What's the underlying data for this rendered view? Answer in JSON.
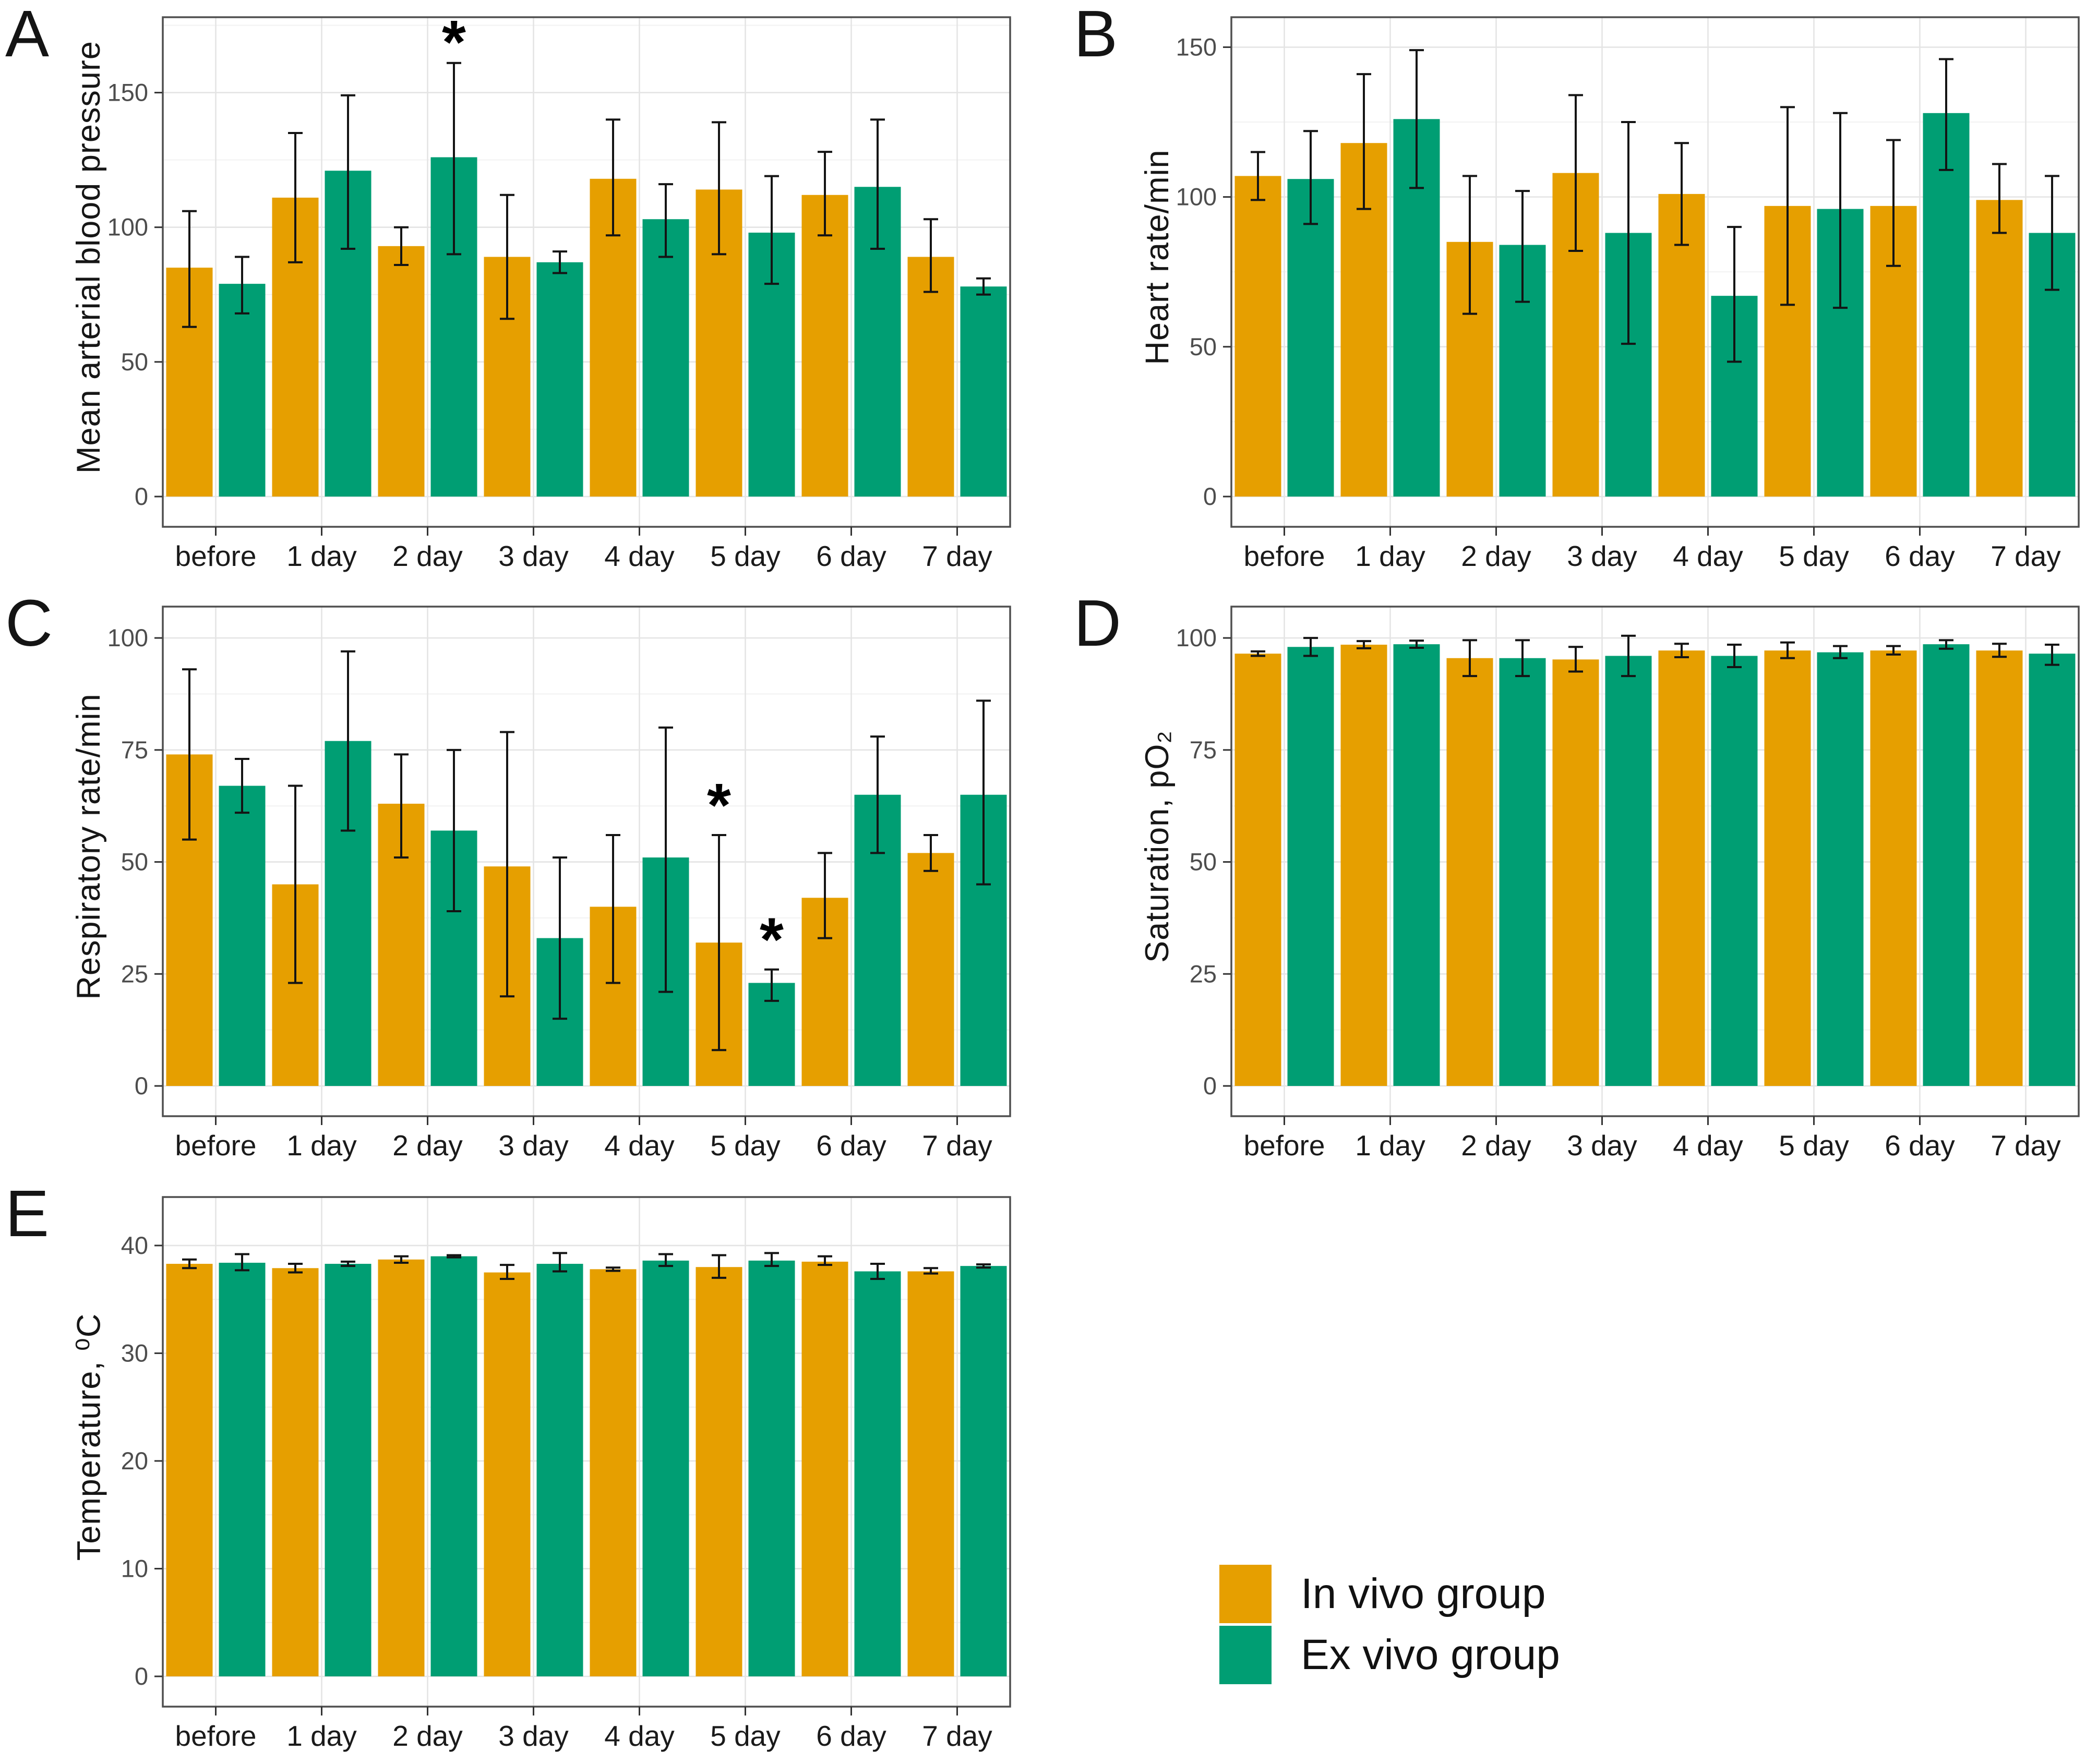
{
  "page": {
    "background": "#ffffff"
  },
  "legend": {
    "position": "bottom-right",
    "items": [
      {
        "label": "In vivo group",
        "color": "#E69F00"
      },
      {
        "label": "Ex vivo group",
        "color": "#009E73"
      }
    ]
  },
  "chart_data": [
    {
      "panel_letter": "A",
      "type": "bar",
      "title": "",
      "xlabel": "",
      "ylabel": "Mean arterial blood pressure",
      "ylim": [
        0,
        178
      ],
      "yticks": [
        0,
        50,
        100,
        150
      ],
      "grid": true,
      "categories": [
        "before",
        "1 day",
        "2 day",
        "3 day",
        "4 day",
        "5 day",
        "6 day",
        "7 day"
      ],
      "series": [
        {
          "name": "In vivo group",
          "color": "#E69F00",
          "values": [
            85,
            111,
            93,
            89,
            118,
            114,
            112,
            89
          ],
          "err_low": [
            63,
            87,
            86,
            66,
            97,
            90,
            97,
            76
          ],
          "err_high": [
            106,
            135,
            100,
            112,
            140,
            139,
            128,
            103
          ]
        },
        {
          "name": "Ex vivo group",
          "color": "#009E73",
          "values": [
            79,
            121,
            126,
            87,
            103,
            98,
            115,
            78
          ],
          "err_low": [
            68,
            92,
            90,
            83,
            89,
            79,
            92,
            75
          ],
          "err_high": [
            89,
            149,
            161,
            91,
            116,
            119,
            140,
            81
          ]
        }
      ],
      "annotations": [
        {
          "cat": 2,
          "series": 1,
          "value": 161,
          "symbol": "*"
        }
      ]
    },
    {
      "panel_letter": "B",
      "type": "bar",
      "title": "",
      "xlabel": "",
      "ylabel": "Heart rate/min",
      "ylim": [
        0,
        160
      ],
      "yticks": [
        0,
        50,
        100,
        150
      ],
      "grid": true,
      "categories": [
        "before",
        "1 day",
        "2 day",
        "3 day",
        "4 day",
        "5 day",
        "6 day",
        "7 day"
      ],
      "series": [
        {
          "name": "In vivo group",
          "color": "#E69F00",
          "values": [
            107,
            118,
            85,
            108,
            101,
            97,
            97,
            99
          ],
          "err_low": [
            99,
            96,
            61,
            82,
            84,
            64,
            77,
            88
          ],
          "err_high": [
            115,
            141,
            107,
            134,
            118,
            130,
            119,
            111
          ]
        },
        {
          "name": "Ex vivo group",
          "color": "#009E73",
          "values": [
            106,
            126,
            84,
            88,
            67,
            96,
            128,
            88
          ],
          "err_low": [
            91,
            103,
            65,
            51,
            45,
            63,
            109,
            69
          ],
          "err_high": [
            122,
            149,
            102,
            125,
            90,
            128,
            146,
            107
          ]
        }
      ],
      "annotations": []
    },
    {
      "panel_letter": "C",
      "type": "bar",
      "title": "",
      "xlabel": "",
      "ylabel": "Respiratory rate/min",
      "ylim": [
        0,
        107
      ],
      "yticks": [
        0,
        25,
        50,
        75,
        100
      ],
      "grid": true,
      "categories": [
        "before",
        "1 day",
        "2 day",
        "3 day",
        "4 day",
        "5 day",
        "6 day",
        "7 day"
      ],
      "series": [
        {
          "name": "In vivo group",
          "color": "#E69F00",
          "values": [
            74,
            45,
            63,
            49,
            40,
            32,
            42,
            52
          ],
          "err_low": [
            55,
            23,
            51,
            20,
            23,
            8,
            33,
            48
          ],
          "err_high": [
            93,
            67,
            74,
            79,
            56,
            56,
            52,
            56
          ]
        },
        {
          "name": "Ex vivo group",
          "color": "#009E73",
          "values": [
            67,
            77,
            57,
            33,
            51,
            23,
            65,
            65
          ],
          "err_low": [
            61,
            57,
            39,
            15,
            21,
            19,
            52,
            45
          ],
          "err_high": [
            73,
            97,
            75,
            51,
            80,
            26,
            78,
            86
          ]
        }
      ],
      "annotations": [
        {
          "cat": 5,
          "series": 0,
          "value": 58,
          "symbol": "*"
        },
        {
          "cat": 5,
          "series": 1,
          "value": 28,
          "symbol": "*"
        }
      ]
    },
    {
      "panel_letter": "D",
      "type": "bar",
      "title": "",
      "xlabel": "",
      "ylabel": "Saturation, pO₂",
      "ylim": [
        0,
        107
      ],
      "yticks": [
        0,
        25,
        50,
        75,
        100
      ],
      "grid": true,
      "categories": [
        "before",
        "1 day",
        "2 day",
        "3 day",
        "4 day",
        "5 day",
        "6 day",
        "7 day"
      ],
      "series": [
        {
          "name": "In vivo group",
          "color": "#E69F00",
          "values": [
            96.5,
            98.5,
            95.5,
            95.2,
            97.2,
            97.2,
            97.2,
            97.2
          ],
          "err_low": [
            96,
            97.7,
            91.5,
            92.5,
            95.7,
            95.5,
            96.3,
            95.8
          ],
          "err_high": [
            97,
            99.3,
            99.5,
            98,
            98.7,
            99,
            98.2,
            98.7
          ]
        },
        {
          "name": "Ex vivo group",
          "color": "#009E73",
          "values": [
            98,
            98.6,
            95.5,
            96,
            96,
            96.8,
            98.6,
            96.5
          ],
          "err_low": [
            96,
            97.8,
            91.5,
            91.5,
            93.5,
            95.5,
            97.6,
            94
          ],
          "err_high": [
            100,
            99.4,
            99.5,
            100.5,
            98.5,
            98.2,
            99.5,
            98.5
          ]
        }
      ],
      "annotations": []
    },
    {
      "panel_letter": "E",
      "type": "bar",
      "title": "",
      "xlabel": "",
      "ylabel": "Temperature, ⁰C",
      "ylim": [
        0,
        44.5
      ],
      "yticks": [
        0,
        10,
        20,
        30,
        40
      ],
      "grid": true,
      "categories": [
        "before",
        "1 day",
        "2 day",
        "3 day",
        "4 day",
        "5 day",
        "6 day",
        "7 day"
      ],
      "series": [
        {
          "name": "In vivo group",
          "color": "#E69F00",
          "values": [
            38.3,
            37.9,
            38.7,
            37.5,
            37.8,
            38.0,
            38.5,
            37.6
          ],
          "err_low": [
            37.9,
            37.5,
            38.4,
            36.9,
            37.65,
            37.0,
            38.2,
            37.4
          ],
          "err_high": [
            38.7,
            38.3,
            39.0,
            38.2,
            37.95,
            39.1,
            39.0,
            37.9
          ]
        },
        {
          "name": "Ex vivo group",
          "color": "#009E73",
          "values": [
            38.4,
            38.3,
            39.0,
            38.3,
            38.6,
            38.6,
            37.6,
            38.1
          ],
          "err_low": [
            37.7,
            38.1,
            38.9,
            37.6,
            38.1,
            38.1,
            36.9,
            37.95
          ],
          "err_high": [
            39.2,
            38.5,
            39.1,
            39.3,
            39.2,
            39.3,
            38.3,
            38.25
          ]
        }
      ],
      "annotations": []
    }
  ]
}
